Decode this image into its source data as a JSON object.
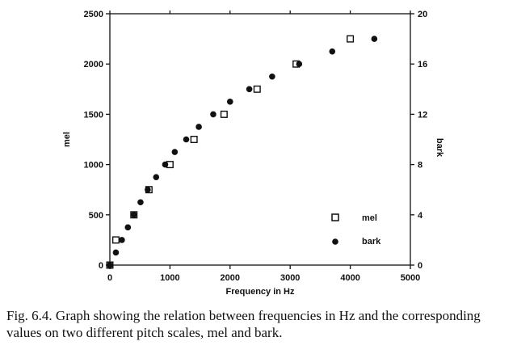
{
  "chart_data": {
    "type": "scatter",
    "title": "",
    "xlabel": "Frequency in Hz",
    "ylabel_left": "mel",
    "ylabel_right": "bark",
    "xlim": [
      0,
      5000
    ],
    "ylim_left": [
      0,
      2500
    ],
    "ylim_right": [
      0,
      20
    ],
    "x_ticks": [
      "0",
      "1000",
      "2000",
      "3000",
      "4000",
      "5000"
    ],
    "y_left_ticks": [
      "0",
      "500",
      "1000",
      "1500",
      "2000",
      "2500"
    ],
    "y_right_ticks": [
      "0",
      "4",
      "8",
      "12",
      "16",
      "20"
    ],
    "grid": false,
    "legend_position": "bottom-right",
    "series": [
      {
        "name": "mel",
        "marker": "open-square",
        "axis": "left",
        "x": [
          0,
          100,
          400,
          650,
          1000,
          1400,
          1900,
          2450,
          3100,
          4000
        ],
        "y": [
          0,
          250,
          500,
          750,
          1000,
          1250,
          1500,
          1750,
          2000,
          2250
        ]
      },
      {
        "name": "bark",
        "marker": "filled-circle",
        "axis": "right",
        "x": [
          0,
          100,
          200,
          300,
          400,
          510,
          630,
          770,
          920,
          1080,
          1270,
          1480,
          1720,
          2000,
          2320,
          2700,
          3150,
          3700,
          4400
        ],
        "y": [
          0,
          1,
          2,
          3,
          4,
          5,
          6,
          7,
          8,
          9,
          10,
          11,
          12,
          13,
          14,
          15,
          16,
          17,
          18
        ]
      }
    ]
  },
  "caption": "Fig. 6.4. Graph showing the relation between frequencies in Hz and the corresponding values on two different pitch scales, mel and bark."
}
